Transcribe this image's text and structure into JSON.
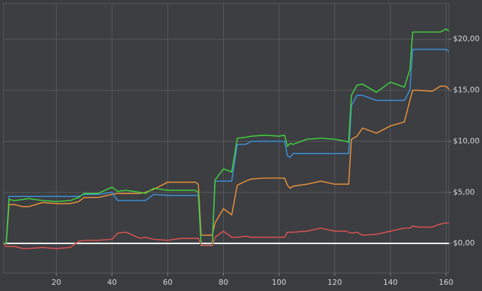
{
  "chart_data": {
    "type": "line",
    "x": [
      1,
      2,
      3,
      5,
      8,
      10,
      15,
      20,
      25,
      28,
      30,
      35,
      40,
      42,
      45,
      50,
      52,
      55,
      60,
      65,
      70,
      71,
      72,
      75,
      76,
      77,
      80,
      83,
      85,
      88,
      90,
      95,
      100,
      102,
      103,
      104,
      105,
      110,
      115,
      120,
      124,
      125,
      126,
      128,
      130,
      135,
      140,
      145,
      147,
      148,
      150,
      155,
      158,
      160,
      161
    ],
    "series": [
      {
        "color": "#e8903a",
        "values": [
          0,
          0,
          3.8,
          3.8,
          3.6,
          3.6,
          4.0,
          3.9,
          3.9,
          4.1,
          4.5,
          4.5,
          4.8,
          4.9,
          4.9,
          4.9,
          5.0,
          5.3,
          6.0,
          6.0,
          6.0,
          5.8,
          0.8,
          0.8,
          0.8,
          2.0,
          3.4,
          2.8,
          5.7,
          6.1,
          6.3,
          6.4,
          6.4,
          6.4,
          5.7,
          5.4,
          5.6,
          5.8,
          6.1,
          5.8,
          5.8,
          5.8,
          10.2,
          10.5,
          11.3,
          10.8,
          11.5,
          11.9,
          14.0,
          15.0,
          15.0,
          14.9,
          15.4,
          15.4,
          15.1
        ]
      },
      {
        "color": "#3d8fd6",
        "values": [
          0,
          0,
          4.6,
          4.6,
          4.6,
          4.6,
          4.6,
          4.6,
          4.6,
          4.6,
          4.8,
          4.8,
          5.0,
          4.2,
          4.2,
          4.2,
          4.2,
          4.8,
          4.7,
          4.7,
          4.7,
          4.7,
          -0.2,
          -0.2,
          -0.2,
          6.1,
          6.1,
          6.1,
          9.7,
          9.7,
          10.0,
          10.0,
          10.0,
          10.0,
          8.6,
          8.4,
          8.8,
          8.8,
          8.8,
          8.8,
          8.8,
          8.8,
          13.5,
          14.5,
          14.5,
          14.0,
          14.0,
          14.0,
          15.0,
          19.0,
          19.0,
          19.0,
          19.0,
          19.0,
          18.8
        ]
      },
      {
        "color": "#42cf3e",
        "values": [
          0,
          0,
          4.3,
          4.2,
          4.3,
          4.4,
          4.2,
          4.1,
          4.2,
          4.5,
          4.9,
          4.9,
          5.5,
          5.1,
          5.2,
          5.0,
          4.9,
          5.4,
          5.2,
          5.2,
          5.2,
          5.0,
          -0.2,
          -0.2,
          -0.2,
          6.2,
          7.3,
          7.0,
          10.3,
          10.4,
          10.5,
          10.6,
          10.5,
          10.6,
          9.5,
          9.8,
          9.7,
          10.2,
          10.3,
          10.2,
          10.0,
          9.9,
          14.5,
          15.5,
          15.6,
          14.8,
          15.8,
          15.3,
          17,
          20.7,
          20.7,
          20.7,
          20.7,
          21.0,
          20.8
        ]
      },
      {
        "color": "#d9534f",
        "values": [
          0,
          -0.3,
          -0.3,
          -0.3,
          -0.5,
          -0.5,
          -0.4,
          -0.5,
          -0.4,
          0.2,
          0.3,
          0.3,
          0.4,
          1.0,
          1.1,
          0.5,
          0.6,
          0.4,
          0.3,
          0.5,
          0.5,
          0.5,
          -0.2,
          -0.2,
          -0.2,
          0.6,
          1.2,
          0.6,
          0.6,
          0.7,
          0.6,
          0.6,
          0.6,
          0.6,
          1.1,
          1.1,
          1.1,
          1.2,
          1.5,
          1.2,
          1.2,
          1.1,
          1.0,
          1.1,
          0.8,
          0.9,
          1.2,
          1.5,
          1.5,
          1.7,
          1.6,
          1.6,
          1.9,
          2.0,
          2.0
        ]
      }
    ],
    "xlim": [
      1,
      161
    ],
    "xticks": [
      20,
      40,
      60,
      80,
      100,
      120,
      140,
      160
    ],
    "ylim": [
      -2.9,
      23.5
    ],
    "yticks": [
      {
        "value": 0,
        "label": "$0,00"
      },
      {
        "value": 5,
        "label": "$5,00"
      },
      {
        "value": 10,
        "label": "$10,00"
      },
      {
        "value": 15,
        "label": "$15,00"
      },
      {
        "value": 20,
        "label": "$20,00"
      }
    ],
    "grid": true,
    "zero_line": true
  }
}
